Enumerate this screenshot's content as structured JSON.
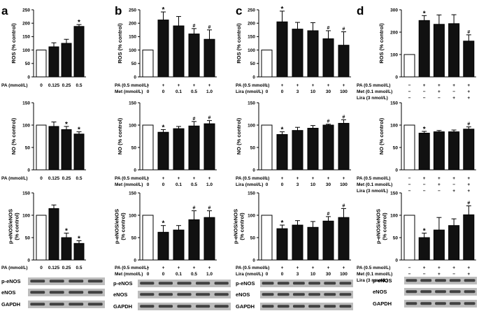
{
  "colors": {
    "bar_control": "#ffffff",
    "bar_treated": "#111111",
    "axis": "#000000",
    "blot_bg": "#bdbdbd",
    "band": "#2b2b2b"
  },
  "panel_letters": [
    "a",
    "b",
    "c",
    "d"
  ],
  "blot_labels": [
    "p-eNOS",
    "eNOS",
    "GAPDH"
  ],
  "conditions": {
    "a": [
      {
        "label": "PA (mmol/L)",
        "values": [
          "0",
          "0.125",
          "0.25",
          "0.5"
        ]
      }
    ],
    "b": [
      {
        "label": "PA (0.5 mmol/L)",
        "values": [
          "−",
          "+",
          "+",
          "+",
          "+"
        ]
      },
      {
        "label": "Met (mmol/L)",
        "values": [
          "0",
          "0",
          "0.1",
          "0.5",
          "1.0"
        ]
      }
    ],
    "c": [
      {
        "label": "PA (0.5 mmol/L)",
        "values": [
          "−",
          "+",
          "+",
          "+",
          "+",
          "+"
        ]
      },
      {
        "label": "Lira (nmol/L)",
        "values": [
          "0",
          "0",
          "3",
          "10",
          "30",
          "100"
        ]
      }
    ],
    "d": [
      {
        "label": "PA (0.5 mmol/L)",
        "values": [
          "−",
          "+",
          "+",
          "+",
          "+"
        ]
      },
      {
        "label": "Met (0.1 mmol/L)",
        "values": [
          "−",
          "−",
          "+",
          "−",
          "+"
        ]
      },
      {
        "label": "Lira (3 nmol/L)",
        "values": [
          "−",
          "−",
          "−",
          "+",
          "+"
        ]
      }
    ]
  },
  "chart_data": [
    {
      "id": "a1",
      "type": "bar",
      "panel": "a",
      "ylabel": [
        "ROS (% control)"
      ],
      "ylim": [
        0,
        250
      ],
      "yticks": [
        "0",
        "50",
        "100",
        "150",
        "200",
        "250"
      ],
      "values": [
        100,
        112,
        125,
        188
      ],
      "errors": [
        0,
        15,
        15,
        7
      ],
      "marks": [
        "",
        "",
        "",
        "*"
      ]
    },
    {
      "id": "b1",
      "type": "bar",
      "panel": "b",
      "ylabel": [
        "ROS (% control)"
      ],
      "ylim": [
        0,
        250
      ],
      "yticks": [
        "0",
        "50",
        "100",
        "150",
        "200",
        "250"
      ],
      "values": [
        100,
        212,
        190,
        160,
        140
      ],
      "errors": [
        0,
        30,
        35,
        20,
        35
      ],
      "marks": [
        "",
        "*",
        "",
        "#",
        "#"
      ]
    },
    {
      "id": "c1",
      "type": "bar",
      "panel": "c",
      "ylabel": [
        "ROS (% control)"
      ],
      "ylim": [
        0,
        250
      ],
      "yticks": [
        "0",
        "50",
        "100",
        "150",
        "200",
        "250"
      ],
      "values": [
        100,
        205,
        178,
        172,
        142,
        118
      ],
      "errors": [
        0,
        40,
        25,
        30,
        30,
        50
      ],
      "marks": [
        "",
        "*",
        "",
        "",
        "#",
        "#"
      ]
    },
    {
      "id": "d1",
      "type": "bar",
      "panel": "d",
      "ylabel": [
        "ROS (% control)"
      ],
      "ylim": [
        0,
        300
      ],
      "yticks": [
        "0",
        "100",
        "200",
        "300"
      ],
      "values": [
        100,
        252,
        235,
        238,
        160
      ],
      "errors": [
        0,
        22,
        42,
        40,
        28
      ],
      "marks": [
        "",
        "*",
        "",
        "",
        "#"
      ]
    },
    {
      "id": "a2",
      "type": "bar",
      "panel": "a",
      "ylabel": [
        "NO (% control)"
      ],
      "ylim": [
        0,
        150
      ],
      "yticks": [
        "0",
        "50",
        "100",
        "150"
      ],
      "values": [
        100,
        97,
        90,
        80
      ],
      "errors": [
        0,
        10,
        7,
        5
      ],
      "marks": [
        "",
        "",
        "*",
        "*"
      ]
    },
    {
      "id": "b2",
      "type": "bar",
      "panel": "b",
      "ylabel": [
        "NO (% control)"
      ],
      "ylim": [
        0,
        150
      ],
      "yticks": [
        "0",
        "50",
        "100",
        "150"
      ],
      "values": [
        100,
        84,
        92,
        98,
        103
      ],
      "errors": [
        0,
        6,
        5,
        10,
        7
      ],
      "marks": [
        "",
        "*",
        "",
        "#",
        "#"
      ]
    },
    {
      "id": "c2",
      "type": "bar",
      "panel": "c",
      "ylabel": [
        "NO (% control)"
      ],
      "ylim": [
        0,
        150
      ],
      "yticks": [
        "0",
        "50",
        "100",
        "150"
      ],
      "values": [
        100,
        79,
        88,
        93,
        100,
        104
      ],
      "errors": [
        0,
        6,
        7,
        6,
        2,
        8
      ],
      "marks": [
        "",
        "*",
        "",
        "",
        "#",
        "#"
      ]
    },
    {
      "id": "d2",
      "type": "bar",
      "panel": "d",
      "ylabel": [
        "NO (% control)"
      ],
      "ylim": [
        0,
        150
      ],
      "yticks": [
        "0",
        "50",
        "100",
        "150"
      ],
      "values": [
        100,
        82,
        85,
        85,
        91
      ],
      "errors": [
        0,
        4,
        3,
        4,
        5
      ],
      "marks": [
        "",
        "*",
        "",
        "",
        "#"
      ]
    },
    {
      "id": "a3",
      "type": "bar",
      "panel": "a",
      "ylabel": [
        "p-eNOS/eNOS",
        "(% control)"
      ],
      "ylim": [
        0,
        150
      ],
      "yticks": [
        "0",
        "50",
        "100",
        "150"
      ],
      "values": [
        100,
        115,
        50,
        37
      ],
      "errors": [
        0,
        8,
        10,
        6
      ],
      "marks": [
        "",
        "",
        "*",
        "*"
      ]
    },
    {
      "id": "b3",
      "type": "bar",
      "panel": "b",
      "ylabel": [
        "p-eNOS/eNOS",
        "(% control)"
      ],
      "ylim": [
        0,
        150
      ],
      "yticks": [
        "0",
        "50",
        "100",
        "150"
      ],
      "values": [
        100,
        62,
        67,
        90,
        95
      ],
      "errors": [
        0,
        15,
        10,
        20,
        15
      ],
      "marks": [
        "",
        "*",
        "",
        "#",
        "#"
      ]
    },
    {
      "id": "c3",
      "type": "bar",
      "panel": "c",
      "ylabel": [
        "p-eNOS/eNOS",
        "(% control)"
      ],
      "ylim": [
        0,
        150
      ],
      "yticks": [
        "0",
        "50",
        "100",
        "150"
      ],
      "values": [
        100,
        70,
        78,
        73,
        87,
        95
      ],
      "errors": [
        0,
        8,
        10,
        13,
        10,
        20
      ],
      "marks": [
        "",
        "*",
        "",
        "",
        "#",
        "#"
      ]
    },
    {
      "id": "d3",
      "type": "bar",
      "panel": "d",
      "ylabel": [
        "p-eNOS/eNOS",
        "(% control)"
      ],
      "ylim": [
        0,
        150
      ],
      "yticks": [
        "0",
        "50",
        "100",
        "150"
      ],
      "values": [
        100,
        50,
        67,
        77,
        101
      ],
      "errors": [
        0,
        10,
        28,
        15,
        20
      ],
      "marks": [
        "",
        "*",
        "",
        "",
        "#"
      ]
    }
  ]
}
